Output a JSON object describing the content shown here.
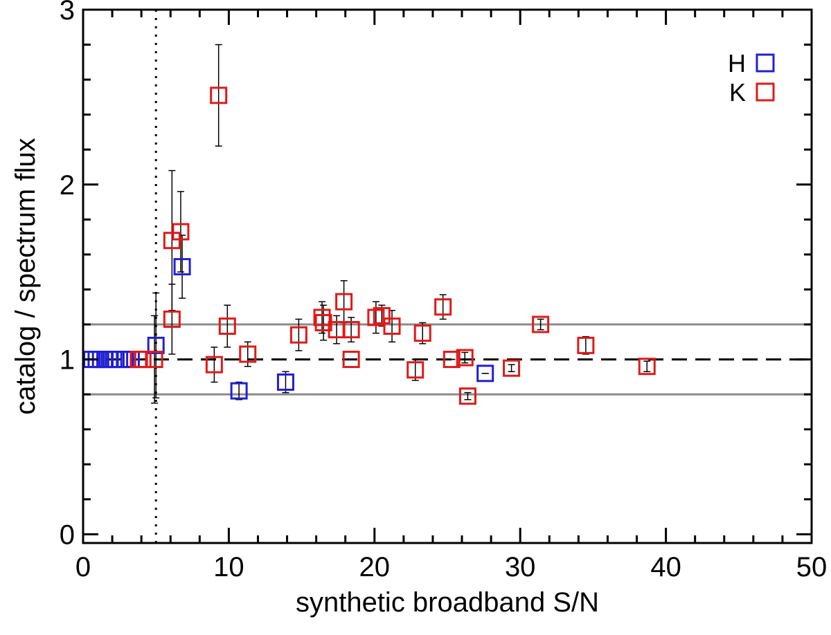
{
  "chart_data": {
    "type": "scatter",
    "title": "",
    "xlabel": "synthetic broadband S/N",
    "ylabel": "catalog / spectrum flux",
    "xlim": [
      0,
      50
    ],
    "ylim": [
      -0.05,
      3.0
    ],
    "xticks": [
      0,
      10,
      20,
      30,
      40,
      50
    ],
    "yticks": [
      0,
      1,
      2,
      3
    ],
    "reference_lines": {
      "dashed_y": 1.0,
      "gray_y": [
        0.8,
        1.2
      ],
      "dotted_x": 5
    },
    "legend": {
      "position": "top-right",
      "entries": [
        "H",
        "K"
      ]
    },
    "series": [
      {
        "name": "H",
        "color": "#1f1fd6",
        "points": [
          {
            "x": 0.6,
            "y": 1.0
          },
          {
            "x": 0.9,
            "y": 1.0
          },
          {
            "x": 1.2,
            "y": 1.0
          },
          {
            "x": 1.5,
            "y": 1.0
          },
          {
            "x": 1.8,
            "y": 1.0
          },
          {
            "x": 2.1,
            "y": 1.0
          },
          {
            "x": 2.5,
            "y": 1.0
          },
          {
            "x": 2.9,
            "y": 1.0
          },
          {
            "x": 3.3,
            "y": 1.0
          },
          {
            "x": 5.0,
            "y": 1.08,
            "err": 0.3
          },
          {
            "x": 6.8,
            "y": 1.53,
            "err": 0.18
          },
          {
            "x": 10.7,
            "y": 0.82,
            "err": 0.05
          },
          {
            "x": 13.9,
            "y": 0.87,
            "err": 0.06
          },
          {
            "x": 27.6,
            "y": 0.92,
            "err": 0.0
          }
        ]
      },
      {
        "name": "K",
        "color": "#e01919",
        "points": [
          {
            "x": 3.8,
            "y": 1.0
          },
          {
            "x": 4.1,
            "y": 1.0
          },
          {
            "x": 4.9,
            "y": 1.0,
            "err": 0.25
          },
          {
            "x": 6.1,
            "y": 1.68,
            "err": 0.4
          },
          {
            "x": 6.1,
            "y": 1.23,
            "err": 0.2
          },
          {
            "x": 6.7,
            "y": 1.73,
            "err": 0.23
          },
          {
            "x": 9.0,
            "y": 0.97,
            "err": 0.1
          },
          {
            "x": 9.3,
            "y": 2.51,
            "err": 0.29
          },
          {
            "x": 9.9,
            "y": 1.19,
            "err": 0.12
          },
          {
            "x": 11.3,
            "y": 1.03,
            "err": 0.07
          },
          {
            "x": 14.8,
            "y": 1.14,
            "err": 0.09
          },
          {
            "x": 16.4,
            "y": 1.24,
            "err": 0.09
          },
          {
            "x": 16.5,
            "y": 1.21,
            "err": 0.1
          },
          {
            "x": 17.4,
            "y": 1.17,
            "err": 0.08
          },
          {
            "x": 17.9,
            "y": 1.33,
            "err": 0.12
          },
          {
            "x": 18.4,
            "y": 1.17,
            "err": 0.07
          },
          {
            "x": 18.4,
            "y": 1.0,
            "err": 0.0
          },
          {
            "x": 20.1,
            "y": 1.24,
            "err": 0.09
          },
          {
            "x": 20.5,
            "y": 1.25,
            "err": 0.06
          },
          {
            "x": 21.2,
            "y": 1.19,
            "err": 0.09
          },
          {
            "x": 22.8,
            "y": 0.94,
            "err": 0.06
          },
          {
            "x": 23.3,
            "y": 1.15,
            "err": 0.06
          },
          {
            "x": 24.7,
            "y": 1.3,
            "err": 0.07
          },
          {
            "x": 25.3,
            "y": 1.0,
            "err": 0.0
          },
          {
            "x": 26.2,
            "y": 1.01,
            "err": 0.03
          },
          {
            "x": 26.4,
            "y": 0.79,
            "err": 0.02
          },
          {
            "x": 29.4,
            "y": 0.95,
            "err": 0.02
          },
          {
            "x": 31.4,
            "y": 1.2,
            "err": 0.03
          },
          {
            "x": 34.5,
            "y": 1.08,
            "err": 0.05
          },
          {
            "x": 38.7,
            "y": 0.96,
            "err": 0.03
          }
        ]
      }
    ]
  }
}
